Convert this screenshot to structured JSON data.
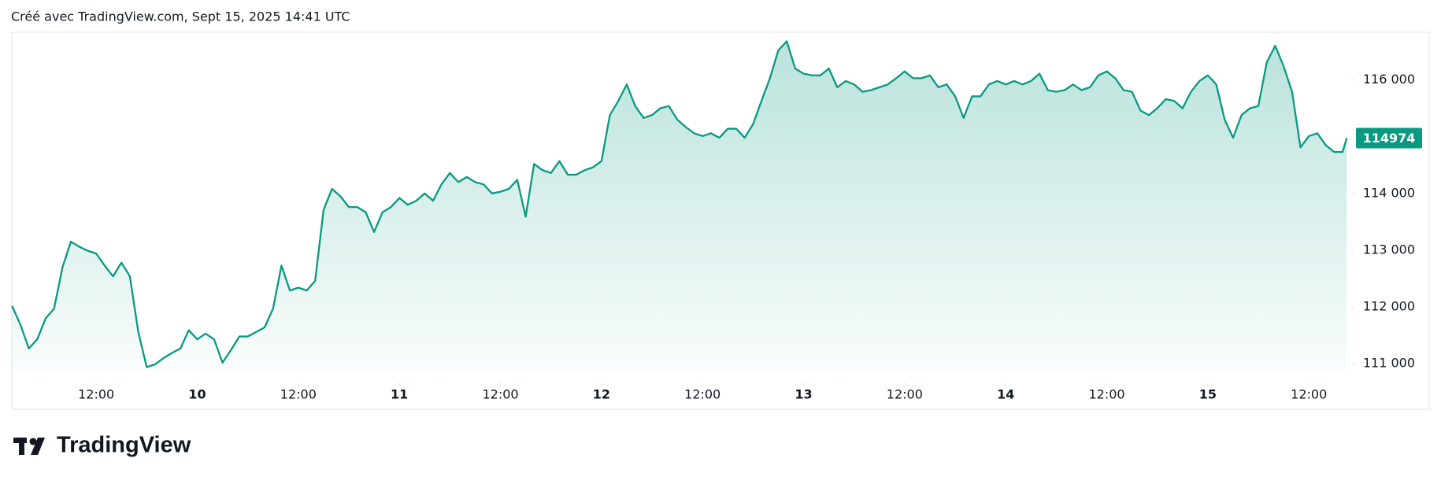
{
  "chart_data": {
    "type": "area",
    "title": "Créé avec TradingView.com, Sept 15, 2025 14:41 UTC",
    "brand": "TradingView",
    "series": [
      {
        "color": "#089981",
        "x": [
          2,
          3,
          4,
          5,
          6,
          7,
          8,
          9,
          10,
          11,
          12,
          13,
          14,
          15,
          16,
          17,
          18,
          19,
          20,
          21,
          22,
          23,
          24,
          25,
          26,
          27,
          28,
          29,
          30,
          31,
          32,
          33,
          34,
          35,
          36,
          37,
          38,
          39,
          40,
          41,
          42,
          43,
          44,
          45,
          46,
          47,
          48,
          49,
          50,
          51,
          52,
          53,
          54,
          55,
          56,
          57,
          58,
          59,
          60,
          61,
          62,
          63,
          64,
          65,
          66,
          67,
          68,
          69,
          70,
          71,
          72,
          73,
          74,
          75,
          76,
          77,
          78,
          79,
          80,
          81,
          82,
          83,
          84,
          85,
          86,
          87,
          88,
          89,
          90,
          91,
          92,
          93,
          94,
          95,
          96,
          97,
          98,
          99,
          100,
          101,
          102,
          103,
          104,
          105,
          106,
          107,
          108,
          109,
          110,
          111,
          112,
          113,
          114,
          115,
          116,
          117,
          118,
          119,
          120,
          121,
          122,
          123,
          124,
          125,
          126,
          127,
          128,
          129,
          130,
          131,
          132,
          133,
          134,
          135,
          136,
          137,
          138,
          139,
          140,
          141,
          142,
          143,
          144,
          145,
          146,
          147,
          148,
          149,
          150,
          151,
          152,
          153,
          154,
          155,
          156,
          157,
          158,
          159,
          160,
          160.5
        ],
        "values": [
          112020,
          111690,
          111270,
          111430,
          111800,
          111970,
          112700,
          113150,
          113060,
          112990,
          112940,
          112730,
          112540,
          112780,
          112540,
          111560,
          110940,
          110990,
          111100,
          111190,
          111270,
          111590,
          111430,
          111530,
          111430,
          111020,
          111240,
          111480,
          111480,
          111560,
          111640,
          111970,
          112730,
          112290,
          112340,
          112290,
          112460,
          113710,
          114080,
          113950,
          113760,
          113760,
          113670,
          113320,
          113670,
          113760,
          113920,
          113800,
          113870,
          114000,
          113870,
          114160,
          114360,
          114200,
          114290,
          114200,
          114160,
          114000,
          114030,
          114080,
          114240,
          113590,
          114520,
          114410,
          114360,
          114570,
          114330,
          114330,
          114410,
          114460,
          114570,
          115380,
          115630,
          115920,
          115540,
          115330,
          115380,
          115500,
          115540,
          115300,
          115170,
          115060,
          115010,
          115060,
          114980,
          115140,
          115140,
          114980,
          115220,
          115630,
          116030,
          116520,
          116680,
          116200,
          116110,
          116080,
          116080,
          116200,
          115870,
          115980,
          115920,
          115790,
          115820,
          115870,
          115920,
          116030,
          116150,
          116030,
          116030,
          116080,
          115870,
          115920,
          115710,
          115330,
          115710,
          115710,
          115920,
          115980,
          115920,
          115980,
          115920,
          115980,
          116110,
          115820,
          115790,
          115820,
          115920,
          115820,
          115870,
          116080,
          116150,
          116030,
          115820,
          115790,
          115460,
          115380,
          115500,
          115660,
          115630,
          115500,
          115790,
          115980,
          116080,
          115920,
          115300,
          114980,
          115380,
          115500,
          115540,
          116310,
          116600,
          116240,
          115790,
          114810,
          115010,
          115060,
          114850,
          114730,
          114730,
          114974
        ]
      }
    ],
    "xlim": [
      2,
      161
    ],
    "xticks": [
      {
        "value": 12,
        "label": "12:00"
      },
      {
        "value": 24,
        "label": "10"
      },
      {
        "value": 36,
        "label": "12:00"
      },
      {
        "value": 48,
        "label": "11"
      },
      {
        "value": 60,
        "label": "12:00"
      },
      {
        "value": 72,
        "label": "12"
      },
      {
        "value": 84,
        "label": "12:00"
      },
      {
        "value": 96,
        "label": "13"
      },
      {
        "value": 108,
        "label": "12:00"
      },
      {
        "value": 120,
        "label": "14"
      },
      {
        "value": 132,
        "label": "12:00"
      },
      {
        "value": 144,
        "label": "15"
      },
      {
        "value": 156,
        "label": "12:00"
      }
    ],
    "ylim": [
      110850,
      116825
    ],
    "yticks": [
      {
        "value": 111000,
        "label": "111 000"
      },
      {
        "value": 112000,
        "label": "112 000"
      },
      {
        "value": 113000,
        "label": "113 000"
      },
      {
        "value": 114000,
        "label": "114 000"
      },
      {
        "value": 116000,
        "label": "116 000"
      }
    ],
    "grid": false
  }
}
